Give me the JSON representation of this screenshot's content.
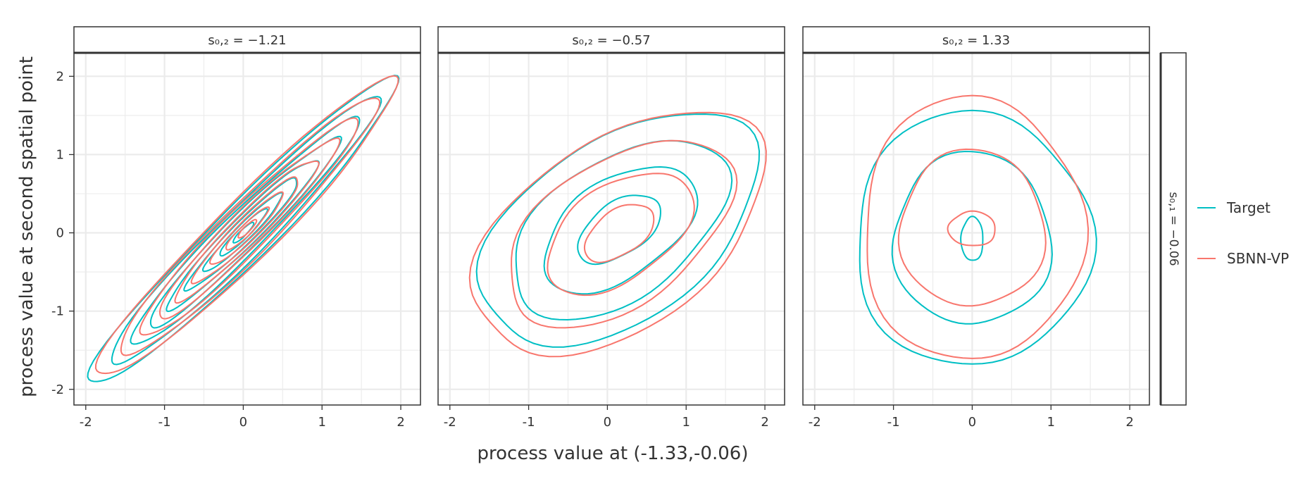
{
  "chart_data": {
    "type": "contour",
    "xlabel": "process value at (-1.33,-0.06)",
    "ylabel": "process value at second spatial point",
    "xlim": [
      -2.15,
      2.25
    ],
    "ylim": [
      -2.2,
      2.3
    ],
    "ticks": [
      -2,
      -1,
      0,
      1,
      2
    ],
    "tick_labels": [
      "-2",
      "-1",
      "0",
      "1",
      "2"
    ],
    "row_strip": "s₀,₁ = −0.06",
    "legend": {
      "placement": "right",
      "entries": [
        {
          "name": "Target",
          "color": "#00BFC4"
        },
        {
          "name": "SBNN-VP",
          "color": "#F8766D"
        }
      ]
    },
    "panels": [
      {
        "strip": "s₀,₂ = −1.21",
        "series": [
          {
            "name": "Target",
            "color": "#00BFC4",
            "center": [
              0.0,
              0.0
            ],
            "rx": [
              2.74,
              2.4,
              2.04,
              1.7,
              1.34,
              1.0,
              0.7,
              0.42,
              0.18
            ],
            "ry": [
              0.36,
              0.31,
              0.26,
              0.22,
              0.18,
              0.14,
              0.1,
              0.07,
              0.04
            ],
            "angle": 45
          },
          {
            "name": "SBNN-VP",
            "color": "#F8766D",
            "center": [
              0.05,
              0.05
            ],
            "rx": [
              2.66,
              2.3,
              1.94,
              1.6,
              1.26,
              0.94,
              0.64,
              0.38,
              0.16
            ],
            "ry": [
              0.38,
              0.33,
              0.28,
              0.23,
              0.19,
              0.15,
              0.11,
              0.07,
              0.04
            ],
            "angle": 45
          }
        ]
      },
      {
        "strip": "s₀,₂ = −0.57",
        "series": [
          {
            "name": "Target",
            "color": "#00BFC4",
            "center": [
              0.15,
              0.05
            ],
            "rx": [
              2.0,
              1.55,
              1.1,
              0.6
            ],
            "ry": [
              1.15,
              0.88,
              0.62,
              0.33
            ],
            "angle": 35
          },
          {
            "name": "SBNN-VP",
            "color": "#F8766D",
            "center": [
              0.15,
              0.0
            ],
            "rx": [
              2.1,
              1.62,
              1.05,
              0.5
            ],
            "ry": [
              1.2,
              0.92,
              0.6,
              0.28
            ],
            "angle": 35
          }
        ]
      },
      {
        "strip": "s₀,₂ = 1.33",
        "series": [
          {
            "name": "Target",
            "color": "#00BFC4",
            "center": [
              0.0,
              -0.08
            ],
            "rx": [
              1.5,
              1.0,
              0.14
            ],
            "ry": [
              1.62,
              1.1,
              0.28
            ],
            "angle": 0
          },
          {
            "name": "SBNN-VP",
            "color": "#F8766D",
            "center": [
              0.0,
              0.05
            ],
            "rx": [
              1.4,
              0.92,
              0.3
            ],
            "ry": [
              1.68,
              1.0,
              0.22
            ],
            "angle": 0
          }
        ]
      }
    ]
  }
}
